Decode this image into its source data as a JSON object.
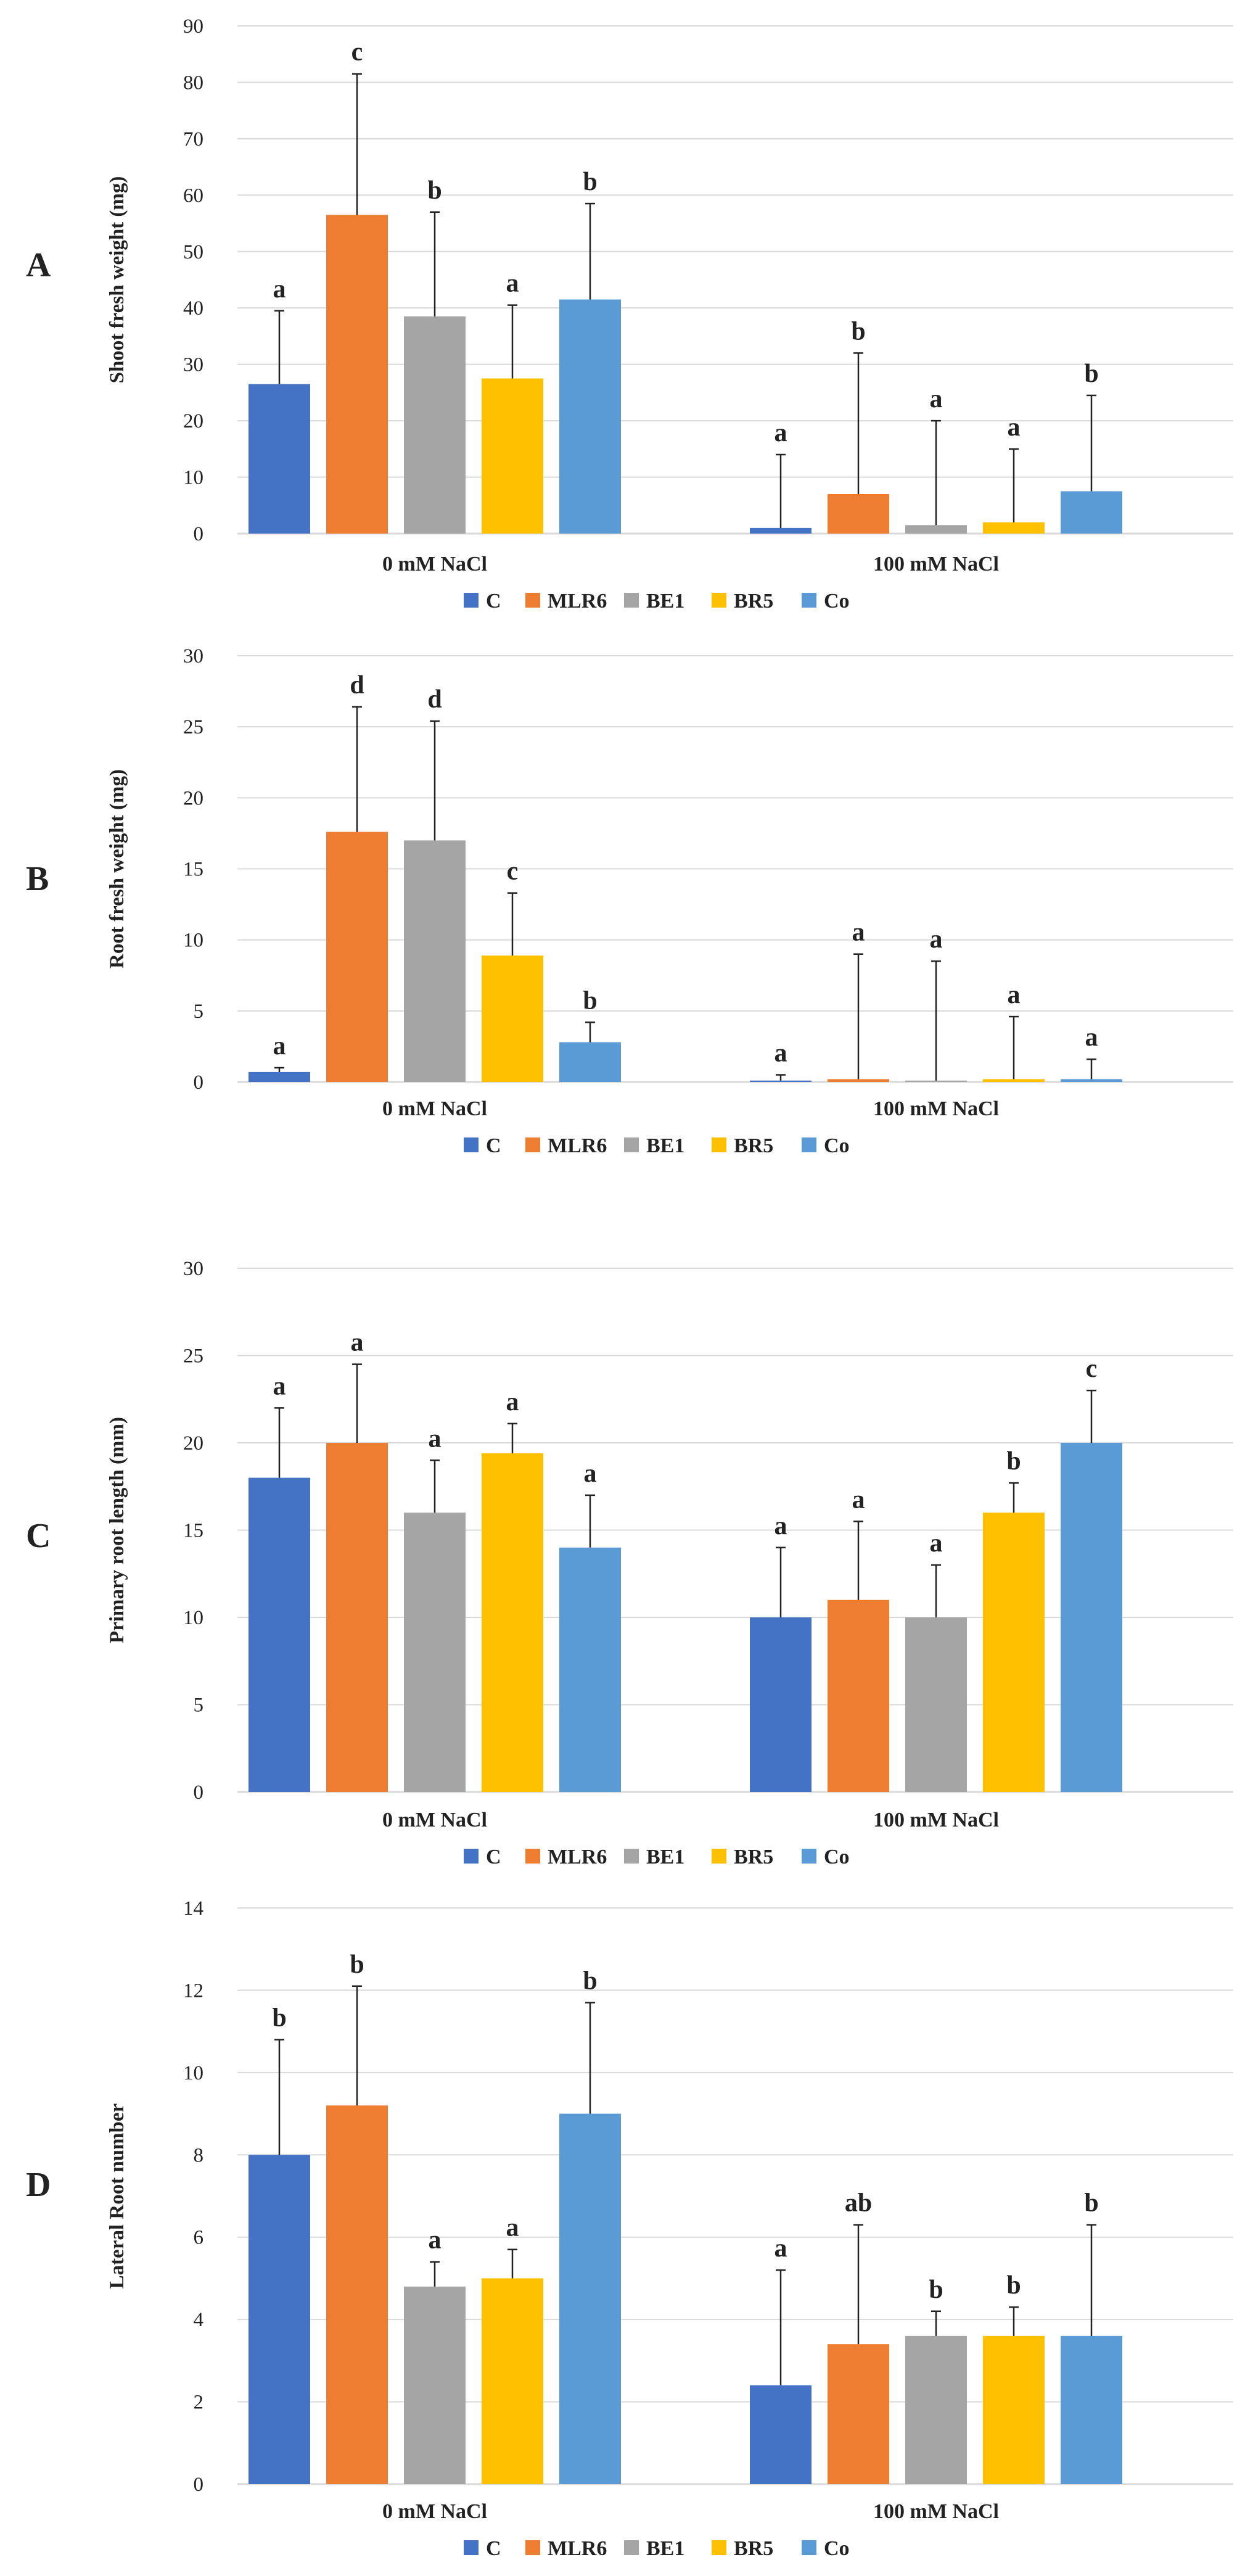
{
  "colors": {
    "C": "#4472C4",
    "MLR6": "#ED7D31",
    "BE1": "#A5A5A5",
    "BR5": "#FFC000",
    "Co": "#5B9BD5",
    "grid": "#D9D9D9",
    "axis": "#D9D9D9",
    "errorbar": "#222222"
  },
  "legend": [
    "C",
    "MLR6",
    "BE1",
    "BR5",
    "Co"
  ],
  "chart_data": [
    {
      "panel": "A",
      "type": "bar",
      "ylabel": "Shoot fresh weight (mg)",
      "ylim": [
        0,
        90
      ],
      "yticks": [
        0,
        10,
        20,
        30,
        40,
        50,
        60,
        70,
        80,
        90
      ],
      "categories": [
        "0 mM NaCl",
        "100 mM NaCl"
      ],
      "series": [
        {
          "name": "C",
          "values": [
            26.5,
            1.0
          ],
          "errors": [
            13,
            13
          ],
          "labels": [
            "a",
            "a"
          ]
        },
        {
          "name": "MLR6",
          "values": [
            56.5,
            7.0
          ],
          "errors": [
            25,
            25
          ],
          "labels": [
            "c",
            "b"
          ]
        },
        {
          "name": "BE1",
          "values": [
            38.5,
            1.5
          ],
          "errors": [
            18.5,
            18.5
          ],
          "labels": [
            "b",
            "a"
          ]
        },
        {
          "name": "BR5",
          "values": [
            27.5,
            2.0
          ],
          "errors": [
            13,
            13
          ],
          "labels": [
            "a",
            "a"
          ]
        },
        {
          "name": "Co",
          "values": [
            41.5,
            7.5
          ],
          "errors": [
            17,
            17
          ],
          "labels": [
            "b",
            "b"
          ]
        }
      ]
    },
    {
      "panel": "B",
      "type": "bar",
      "ylabel": "Root fresh weight (mg)",
      "ylim": [
        0,
        30
      ],
      "yticks": [
        0,
        5,
        10,
        15,
        20,
        25,
        30
      ],
      "categories": [
        "0 mM NaCl",
        "100 mM NaCl"
      ],
      "series": [
        {
          "name": "C",
          "values": [
            0.7,
            0.1
          ],
          "errors": [
            0.3,
            0.4
          ],
          "labels": [
            "a",
            "a"
          ]
        },
        {
          "name": "MLR6",
          "values": [
            17.6,
            0.2
          ],
          "errors": [
            8.8,
            8.8
          ],
          "labels": [
            "d",
            "a"
          ]
        },
        {
          "name": "BE1",
          "values": [
            17.0,
            0.1
          ],
          "errors": [
            8.4,
            8.4
          ],
          "labels": [
            "d",
            "a"
          ]
        },
        {
          "name": "BR5",
          "values": [
            8.9,
            0.2
          ],
          "errors": [
            4.4,
            4.4
          ],
          "labels": [
            "c",
            "a"
          ]
        },
        {
          "name": "Co",
          "values": [
            2.8,
            0.2
          ],
          "errors": [
            1.4,
            1.4
          ],
          "labels": [
            "b",
            "a"
          ]
        }
      ]
    },
    {
      "panel": "C",
      "type": "bar",
      "ylabel": "Primary root length (mm)",
      "ylim": [
        0,
        30
      ],
      "yticks": [
        0,
        5,
        10,
        15,
        20,
        25,
        30
      ],
      "categories": [
        "0 mM NaCl",
        "100 mM NaCl"
      ],
      "series": [
        {
          "name": "C",
          "values": [
            18,
            10
          ],
          "errors": [
            4,
            4
          ],
          "labels": [
            "a",
            "a"
          ]
        },
        {
          "name": "MLR6",
          "values": [
            20,
            11
          ],
          "errors": [
            4.5,
            4.5
          ],
          "labels": [
            "a",
            "a"
          ]
        },
        {
          "name": "BE1",
          "values": [
            16,
            10
          ],
          "errors": [
            3,
            3
          ],
          "labels": [
            "a",
            "a"
          ]
        },
        {
          "name": "BR5",
          "values": [
            19.4,
            16
          ],
          "errors": [
            1.7,
            1.7
          ],
          "labels": [
            "a",
            "b"
          ]
        },
        {
          "name": "Co",
          "values": [
            14,
            20
          ],
          "errors": [
            3,
            3
          ],
          "labels": [
            "a",
            "c"
          ]
        }
      ]
    },
    {
      "panel": "D",
      "type": "bar",
      "ylabel": "Lateral Root number",
      "ylim": [
        0,
        14
      ],
      "yticks": [
        0,
        2,
        4,
        6,
        8,
        10,
        12,
        14
      ],
      "categories": [
        "0 mM NaCl",
        "100 mM NaCl"
      ],
      "series": [
        {
          "name": "C",
          "values": [
            8,
            2.4
          ],
          "errors": [
            2.8,
            2.8
          ],
          "labels": [
            "b",
            "a"
          ]
        },
        {
          "name": "MLR6",
          "values": [
            9.2,
            3.4
          ],
          "errors": [
            2.9,
            2.9
          ],
          "labels": [
            "b",
            "ab"
          ]
        },
        {
          "name": "BE1",
          "values": [
            4.8,
            3.6
          ],
          "errors": [
            0.6,
            0.6
          ],
          "labels": [
            "a",
            "b"
          ]
        },
        {
          "name": "BR5",
          "values": [
            5.0,
            3.6
          ],
          "errors": [
            0.7,
            0.7
          ],
          "labels": [
            "a",
            "b"
          ]
        },
        {
          "name": "Co",
          "values": [
            9.0,
            3.6
          ],
          "errors": [
            2.7,
            2.7
          ],
          "labels": [
            "b",
            "b"
          ]
        }
      ]
    }
  ]
}
